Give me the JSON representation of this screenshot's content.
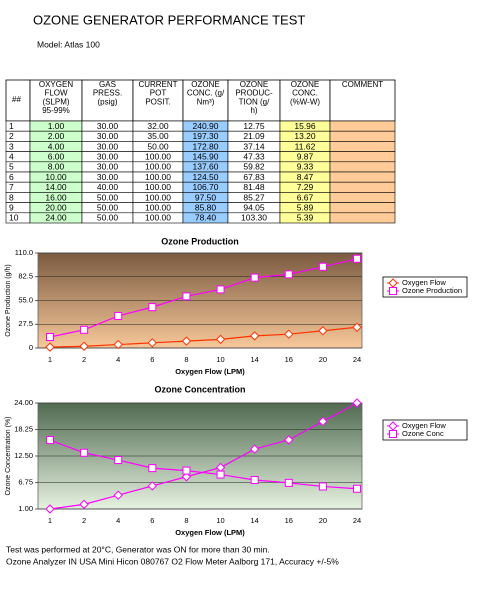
{
  "header": {
    "title": "OZONE GENERATOR PERFORMANCE TEST",
    "model": "Model: Atlas 100"
  },
  "table": {
    "columns": [
      [
        "##"
      ],
      [
        "OXYGEN",
        "FLOW",
        "(SLPM)",
        "95-99%"
      ],
      [
        "GAS",
        "PRESS.",
        "(psig)"
      ],
      [
        "CURRENT",
        "POT",
        "POSIT."
      ],
      [
        "OZONE",
        "CONC. (g/",
        "Nm³)"
      ],
      [
        "OZONE",
        "PRODUC-",
        "TION  (g/",
        "h)"
      ],
      [
        "OZONE",
        "CONC.",
        "(%W-W)"
      ],
      [
        "COMMENT"
      ]
    ],
    "rows": [
      [
        "1",
        "1.00",
        "30.00",
        "32.00",
        "240.90",
        "12.75",
        "15.96",
        ""
      ],
      [
        "2",
        "2.00",
        "30.00",
        "35.00",
        "197.30",
        "21.09",
        "13.20",
        ""
      ],
      [
        "3",
        "4.00",
        "30.00",
        "50.00",
        "172.80",
        "37.14",
        "11.62",
        ""
      ],
      [
        "4",
        "6.00",
        "30.00",
        "100.00",
        "145.90",
        "47.33",
        "9.87",
        ""
      ],
      [
        "5",
        "8.00",
        "30.00",
        "100.00",
        "137.60",
        "59.82",
        "9.33",
        ""
      ],
      [
        "6",
        "10.00",
        "30.00",
        "100.00",
        "124.50",
        "67.83",
        "8.47",
        ""
      ],
      [
        "7",
        "14.00",
        "40.00",
        "100.00",
        "106.70",
        "81.48",
        "7.29",
        ""
      ],
      [
        "8",
        "16.00",
        "50.00",
        "100.00",
        "97.50",
        "85.27",
        "6.67",
        ""
      ],
      [
        "9",
        "20.00",
        "50.00",
        "100.00",
        "85.80",
        "94.05",
        "5.89",
        ""
      ],
      [
        "10",
        "24.00",
        "50.00",
        "100.00",
        "78.40",
        "103.30",
        "5.39",
        ""
      ]
    ],
    "column_colors": [
      "#ffffff",
      "#ccffcc",
      "#ffffff",
      "#ffffff",
      "#99ccff",
      "#ffffff",
      "#ffff99",
      "#ffcc99"
    ]
  },
  "chart_data": [
    {
      "type": "line",
      "title": "Ozone Production",
      "x_label": "Oxygen Flow (LPM)",
      "y_label": "Ozone Production (g/h)",
      "categories": [
        "1",
        "2",
        "4",
        "6",
        "8",
        "10",
        "14",
        "16",
        "20",
        "24"
      ],
      "series": [
        {
          "name": "Oxygen Flow",
          "color": "#ff3300",
          "marker": "diamond",
          "values": [
            1,
            2,
            4,
            6,
            8,
            10,
            14,
            16,
            20,
            24
          ]
        },
        {
          "name": "Ozone Production",
          "color": "#ff00ff",
          "marker": "square",
          "values": [
            12.75,
            21.09,
            37.14,
            47.33,
            59.82,
            67.83,
            81.48,
            85.27,
            94.05,
            103.3
          ]
        }
      ],
      "ylim": [
        0,
        110
      ],
      "yticks": [
        0,
        27.5,
        {
          "value": 55,
          "label": "55.0"
        },
        82.5,
        {
          "value": 110,
          "label": "110.0"
        }
      ],
      "grid": true
    },
    {
      "type": "line",
      "title": "Ozone Concentration",
      "x_label": "Oxygen Flow (LPM)",
      "y_label": "Ozone Concentration (%)",
      "categories": [
        "1",
        "2",
        "4",
        "6",
        "8",
        "10",
        "14",
        "16",
        "20",
        "24"
      ],
      "series": [
        {
          "name": "Oxygen Flow",
          "color": "#ff00ff",
          "marker": "diamond",
          "values": [
            1,
            2,
            4,
            6,
            8,
            10,
            14,
            16,
            20,
            24
          ]
        },
        {
          "name": "Ozone Conc",
          "color": "#ff00ff",
          "marker": "square",
          "values": [
            15.96,
            13.2,
            11.62,
            9.87,
            9.33,
            8.47,
            7.29,
            6.67,
            5.89,
            5.39
          ]
        }
      ],
      "ylim": [
        1,
        24
      ],
      "yticks": [
        {
          "value": 1,
          "label": "1.00"
        },
        {
          "value": 6.75,
          "label": "6.75"
        },
        {
          "value": 12.5,
          "label": "12.50"
        },
        {
          "value": 18.25,
          "label": "18.25"
        },
        {
          "value": 24,
          "label": "24.00"
        }
      ],
      "grid": true
    }
  ],
  "footer": [
    "Test was performed at 20°C, Generator was ON for more than 30 min.",
    "Ozone Analyzer IN USA Mini Hicon 080767 O2 Flow Meter Aalborg 171, Accuracy +/-5%"
  ]
}
